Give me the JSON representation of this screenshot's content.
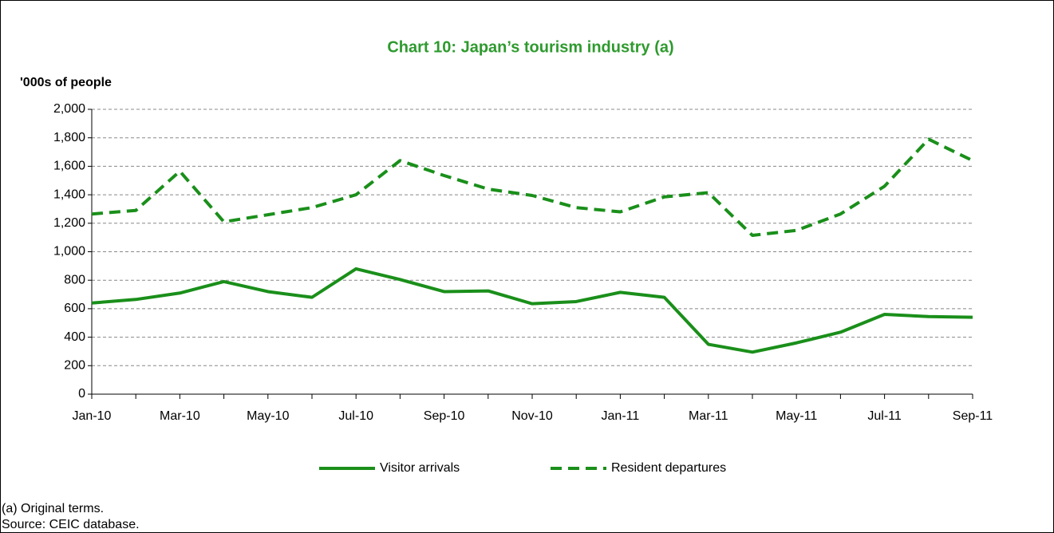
{
  "chart_data": {
    "type": "line",
    "title": "Chart 10: Japan’s tourism industry (a)",
    "y_label": "'000s of people",
    "categories": [
      "Jan-10",
      null,
      "Mar-10",
      null,
      "May-10",
      null,
      "Jul-10",
      null,
      "Sep-10",
      null,
      "Nov-10",
      null,
      "Jan-11",
      null,
      "Mar-11",
      null,
      "May-11",
      null,
      "Jul-11",
      null,
      "Sep-11"
    ],
    "series": [
      {
        "name": "Visitor arrivals",
        "color": "#1a8f1a",
        "dash": false,
        "values": [
          640,
          665,
          710,
          790,
          720,
          680,
          880,
          805,
          720,
          725,
          635,
          650,
          715,
          680,
          350,
          295,
          360,
          435,
          560,
          545,
          540
        ]
      },
      {
        "name": "Resident departures",
        "color": "#1a8f1a",
        "dash": true,
        "values": [
          1265,
          1290,
          1565,
          1210,
          1260,
          1310,
          1400,
          1640,
          1535,
          1440,
          1395,
          1310,
          1280,
          1385,
          1415,
          1115,
          1150,
          1265,
          1460,
          1790,
          1640
        ]
      }
    ],
    "ylim": [
      0,
      2000
    ],
    "yticks": [
      0,
      200,
      400,
      600,
      800,
      {
        "value": 1000,
        "label": "1,000"
      },
      {
        "value": 1200,
        "label": "1,200"
      },
      {
        "value": 1400,
        "label": "1,400"
      },
      {
        "value": 1600,
        "label": "1,600"
      },
      {
        "value": 1800,
        "label": "1,800"
      },
      {
        "value": 2000,
        "label": "2,000"
      }
    ],
    "grid": true,
    "legend": "bottom",
    "notes": [
      "(a) Original terms.",
      "Source: CEIC database."
    ]
  }
}
